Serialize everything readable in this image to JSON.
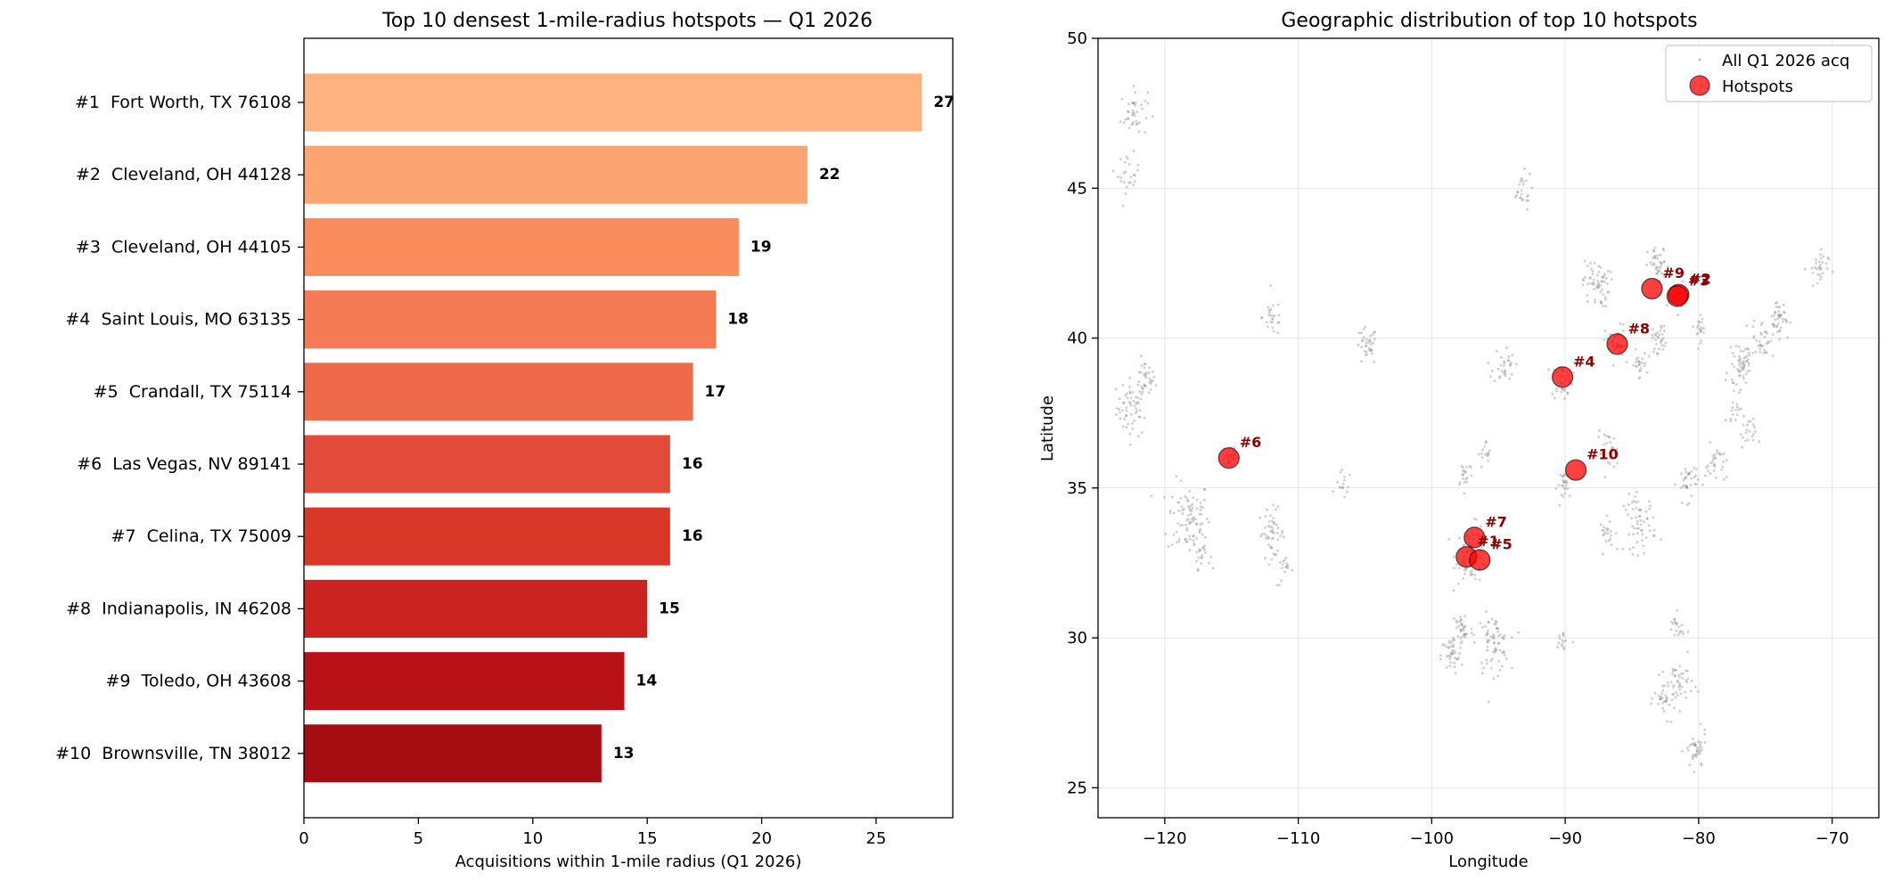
{
  "chart_data": [
    {
      "type": "bar",
      "orientation": "horizontal",
      "title": "Top 10 densest 1-mile-radius hotspots — Q1 2026",
      "xlabel": "Acquisitions within 1-mile radius (Q1 2026)",
      "ylabel": "",
      "xlim": [
        0,
        28.35
      ],
      "xticks": [
        0,
        5,
        10,
        15,
        20,
        25
      ],
      "categories": [
        "#1  Fort Worth, TX 76108",
        "#2  Cleveland, OH 44128",
        "#3  Cleveland, OH 44105",
        "#4  Saint Louis, MO 63135",
        "#5  Crandall, TX 75114",
        "#6  Las Vegas, NV 89141",
        "#7  Celina, TX 75009",
        "#8  Indianapolis, IN 46208",
        "#9  Toledo, OH 43608",
        "#10  Brownsville, TN 38012"
      ],
      "values": [
        27,
        22,
        19,
        18,
        17,
        16,
        16,
        15,
        14,
        13
      ],
      "colors": [
        "#fdb27f",
        "#fca572",
        "#fb8d5d",
        "#f47b56",
        "#ef6a4b",
        "#e24b3a",
        "#d93829",
        "#cb2320",
        "#b81217",
        "#a50c12"
      ],
      "grid": false
    },
    {
      "type": "scatter",
      "title": "Geographic distribution of top 10 hotspots",
      "xlabel": "Longitude",
      "ylabel": "Latitude",
      "xlim": [
        -125,
        -66.5
      ],
      "ylim": [
        24,
        50
      ],
      "xticks": [
        -120,
        -110,
        -100,
        -90,
        -80,
        -70
      ],
      "yticks": [
        25,
        30,
        35,
        40,
        45,
        50
      ],
      "xtick_labels": [
        "−120",
        "−110",
        "−100",
        "−90",
        "−80",
        "−70"
      ],
      "grid": true,
      "legend": {
        "placement": "top-right",
        "entries": [
          {
            "label": "All Q1 2026 acq",
            "color": "#808080",
            "marker": "small-dot"
          },
          {
            "label": "Hotspots",
            "color": "#ff0000",
            "marker": "large-circle"
          }
        ]
      },
      "hotspots": [
        {
          "label": "#1",
          "lon": -97.4,
          "lat": 32.7
        },
        {
          "label": "#2",
          "lon": -81.5,
          "lat": 41.45
        },
        {
          "label": "#3",
          "lon": -81.6,
          "lat": 41.4
        },
        {
          "label": "#4",
          "lon": -90.2,
          "lat": 38.7
        },
        {
          "label": "#5",
          "lon": -96.4,
          "lat": 32.6
        },
        {
          "label": "#6",
          "lon": -115.2,
          "lat": 36.0
        },
        {
          "label": "#7",
          "lon": -96.8,
          "lat": 33.35
        },
        {
          "label": "#8",
          "lon": -86.1,
          "lat": 39.8
        },
        {
          "label": "#9",
          "lon": -83.5,
          "lat": 41.65
        },
        {
          "label": "#10",
          "lon": -89.2,
          "lat": 35.6
        }
      ],
      "hotspot_color": "#ff0000",
      "hotspot_label_color": "#8b0000",
      "background_points_color": "#808080",
      "background_clusters": [
        {
          "lon": -122.4,
          "lat": 37.7,
          "spread": 0.6,
          "n": 60
        },
        {
          "lon": -121.5,
          "lat": 38.6,
          "spread": 0.4,
          "n": 30
        },
        {
          "lon": -118.2,
          "lat": 34.0,
          "spread": 0.8,
          "n": 90
        },
        {
          "lon": -117.2,
          "lat": 32.8,
          "spread": 0.3,
          "n": 20
        },
        {
          "lon": -122.3,
          "lat": 47.5,
          "spread": 0.5,
          "n": 40
        },
        {
          "lon": -122.7,
          "lat": 45.5,
          "spread": 0.4,
          "n": 25
        },
        {
          "lon": -112.0,
          "lat": 33.5,
          "spread": 0.5,
          "n": 50
        },
        {
          "lon": -111.0,
          "lat": 32.2,
          "spread": 0.3,
          "n": 15
        },
        {
          "lon": -115.1,
          "lat": 36.1,
          "spread": 0.3,
          "n": 25
        },
        {
          "lon": -111.9,
          "lat": 40.7,
          "spread": 0.4,
          "n": 25
        },
        {
          "lon": -104.9,
          "lat": 39.7,
          "spread": 0.4,
          "n": 35
        },
        {
          "lon": -106.6,
          "lat": 35.1,
          "spread": 0.3,
          "n": 15
        },
        {
          "lon": -97.0,
          "lat": 32.8,
          "spread": 0.6,
          "n": 70
        },
        {
          "lon": -95.4,
          "lat": 29.8,
          "spread": 0.6,
          "n": 70
        },
        {
          "lon": -98.5,
          "lat": 29.4,
          "spread": 0.4,
          "n": 40
        },
        {
          "lon": -97.7,
          "lat": 30.3,
          "spread": 0.4,
          "n": 35
        },
        {
          "lon": -97.5,
          "lat": 35.5,
          "spread": 0.3,
          "n": 20
        },
        {
          "lon": -95.9,
          "lat": 36.1,
          "spread": 0.3,
          "n": 15
        },
        {
          "lon": -94.6,
          "lat": 39.1,
          "spread": 0.4,
          "n": 30
        },
        {
          "lon": -90.2,
          "lat": 38.6,
          "spread": 0.4,
          "n": 30
        },
        {
          "lon": -93.3,
          "lat": 44.9,
          "spread": 0.4,
          "n": 25
        },
        {
          "lon": -87.7,
          "lat": 41.8,
          "spread": 0.5,
          "n": 60
        },
        {
          "lon": -86.2,
          "lat": 39.8,
          "spread": 0.4,
          "n": 35
        },
        {
          "lon": -83.0,
          "lat": 42.4,
          "spread": 0.4,
          "n": 40
        },
        {
          "lon": -81.7,
          "lat": 41.4,
          "spread": 0.3,
          "n": 30
        },
        {
          "lon": -82.9,
          "lat": 40.0,
          "spread": 0.3,
          "n": 30
        },
        {
          "lon": -84.5,
          "lat": 39.1,
          "spread": 0.3,
          "n": 25
        },
        {
          "lon": -79.9,
          "lat": 40.4,
          "spread": 0.3,
          "n": 20
        },
        {
          "lon": -86.8,
          "lat": 36.2,
          "spread": 0.4,
          "n": 30
        },
        {
          "lon": -90.0,
          "lat": 35.1,
          "spread": 0.3,
          "n": 25
        },
        {
          "lon": -84.4,
          "lat": 33.8,
          "spread": 0.6,
          "n": 60
        },
        {
          "lon": -86.8,
          "lat": 33.5,
          "spread": 0.3,
          "n": 20
        },
        {
          "lon": -80.8,
          "lat": 35.2,
          "spread": 0.4,
          "n": 35
        },
        {
          "lon": -78.7,
          "lat": 35.8,
          "spread": 0.4,
          "n": 30
        },
        {
          "lon": -81.4,
          "lat": 28.5,
          "spread": 0.5,
          "n": 40
        },
        {
          "lon": -82.5,
          "lat": 28.0,
          "spread": 0.4,
          "n": 35
        },
        {
          "lon": -80.2,
          "lat": 26.2,
          "spread": 0.4,
          "n": 40
        },
        {
          "lon": -81.7,
          "lat": 30.3,
          "spread": 0.3,
          "n": 20
        },
        {
          "lon": -90.1,
          "lat": 29.9,
          "spread": 0.3,
          "n": 15
        },
        {
          "lon": -77.0,
          "lat": 38.9,
          "spread": 0.4,
          "n": 35
        },
        {
          "lon": -76.6,
          "lat": 39.3,
          "spread": 0.3,
          "n": 25
        },
        {
          "lon": -75.2,
          "lat": 40.0,
          "spread": 0.4,
          "n": 35
        },
        {
          "lon": -74.0,
          "lat": 40.7,
          "spread": 0.4,
          "n": 40
        },
        {
          "lon": -71.1,
          "lat": 42.3,
          "spread": 0.4,
          "n": 30
        },
        {
          "lon": -76.3,
          "lat": 36.8,
          "spread": 0.3,
          "n": 20
        },
        {
          "lon": -77.4,
          "lat": 37.5,
          "spread": 0.3,
          "n": 15
        }
      ]
    }
  ]
}
